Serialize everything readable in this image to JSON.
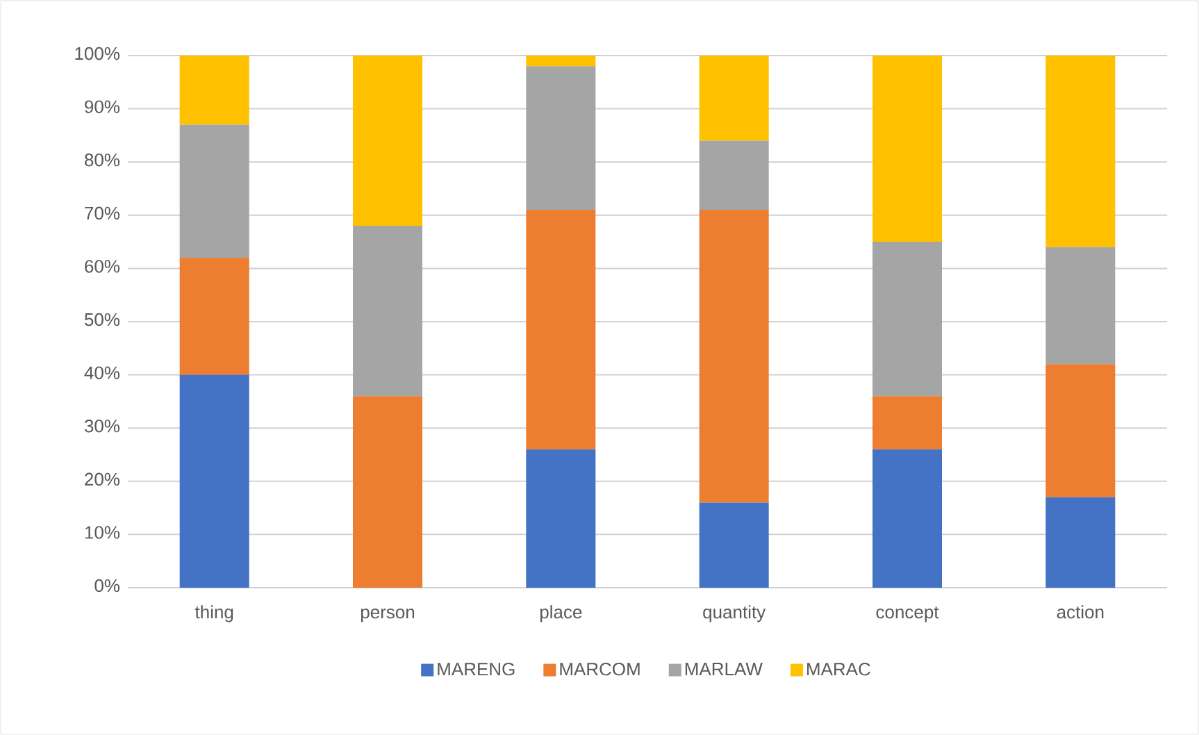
{
  "chart_data": {
    "type": "bar",
    "stacked": true,
    "categories": [
      "thing",
      "person",
      "place",
      "quantity",
      "concept",
      "action"
    ],
    "series": [
      {
        "name": "MARENG",
        "color": "#4472c4",
        "values": [
          40,
          0,
          26,
          16,
          26,
          17
        ]
      },
      {
        "name": "MARCOM",
        "color": "#ed7d31",
        "values": [
          22,
          36,
          45,
          55,
          10,
          25
        ]
      },
      {
        "name": "MARLAW",
        "color": "#a5a5a5",
        "values": [
          25,
          32,
          27,
          13,
          29,
          22
        ]
      },
      {
        "name": "MARAC",
        "color": "#ffc000",
        "values": [
          13,
          32,
          2,
          16,
          35,
          36
        ]
      }
    ],
    "ylim": [
      0,
      100
    ],
    "yticks": [
      {
        "value": 0,
        "label": "0%"
      },
      {
        "value": 10,
        "label": "10%"
      },
      {
        "value": 20,
        "label": "20%"
      },
      {
        "value": 30,
        "label": "30%"
      },
      {
        "value": 40,
        "label": "40%"
      },
      {
        "value": 50,
        "label": "50%"
      },
      {
        "value": 60,
        "label": "60%"
      },
      {
        "value": 70,
        "label": "70%"
      },
      {
        "value": 80,
        "label": "80%"
      },
      {
        "value": 90,
        "label": "90%"
      },
      {
        "value": 100,
        "label": "100%"
      }
    ],
    "grid": "y",
    "legend": "bottom"
  }
}
